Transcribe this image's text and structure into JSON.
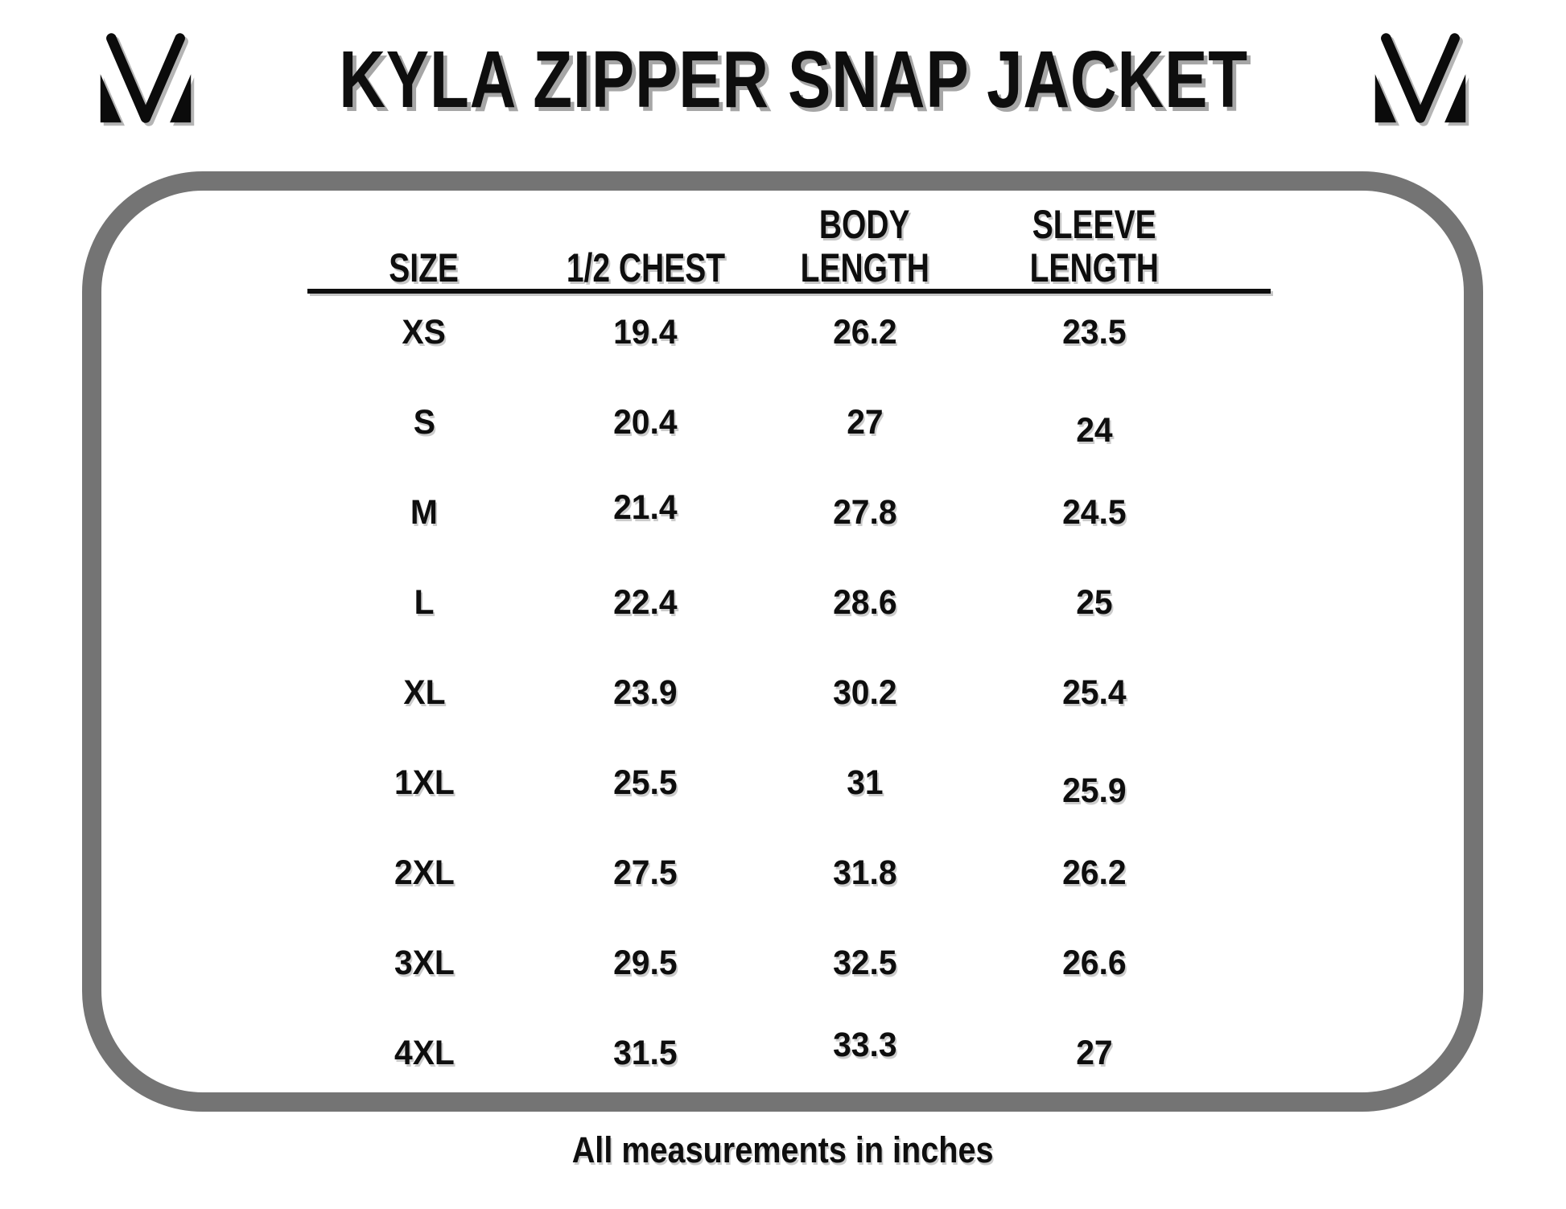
{
  "chart_data": {
    "type": "table",
    "title": "KYLA ZIPPER SNAP JACKET",
    "columns": [
      "SIZE",
      "1/2 CHEST",
      "BODY LENGTH",
      "SLEEVE LENGTH"
    ],
    "column_lines": [
      [
        "SIZE"
      ],
      [
        "1/2 CHEST"
      ],
      [
        "BODY",
        "LENGTH"
      ],
      [
        "SLEEVE",
        "LENGTH"
      ]
    ],
    "rows": [
      [
        "XS",
        "19.4",
        "26.2",
        "23.5"
      ],
      [
        "S",
        "20.4",
        "27",
        "24"
      ],
      [
        "M",
        "21.4",
        "27.8",
        "24.5"
      ],
      [
        "L",
        "22.4",
        "28.6",
        "25"
      ],
      [
        "XL",
        "23.9",
        "30.2",
        "25.4"
      ],
      [
        "1XL",
        "25.5",
        "31",
        "25.9"
      ],
      [
        "2XL",
        "27.5",
        "31.8",
        "26.2"
      ],
      [
        "3XL",
        "29.5",
        "32.5",
        "26.6"
      ],
      [
        "4XL",
        "31.5",
        "33.3",
        "27"
      ]
    ],
    "footnote": "All measurements in inches"
  },
  "logo": {
    "name": "mv-monogram",
    "color": "#0b0b0b"
  },
  "colors": {
    "panel_border": "#747474",
    "text": "#0e0e0e",
    "title_shadow": "#a6a6a6",
    "soft_shadow": "#c6c6c6"
  }
}
